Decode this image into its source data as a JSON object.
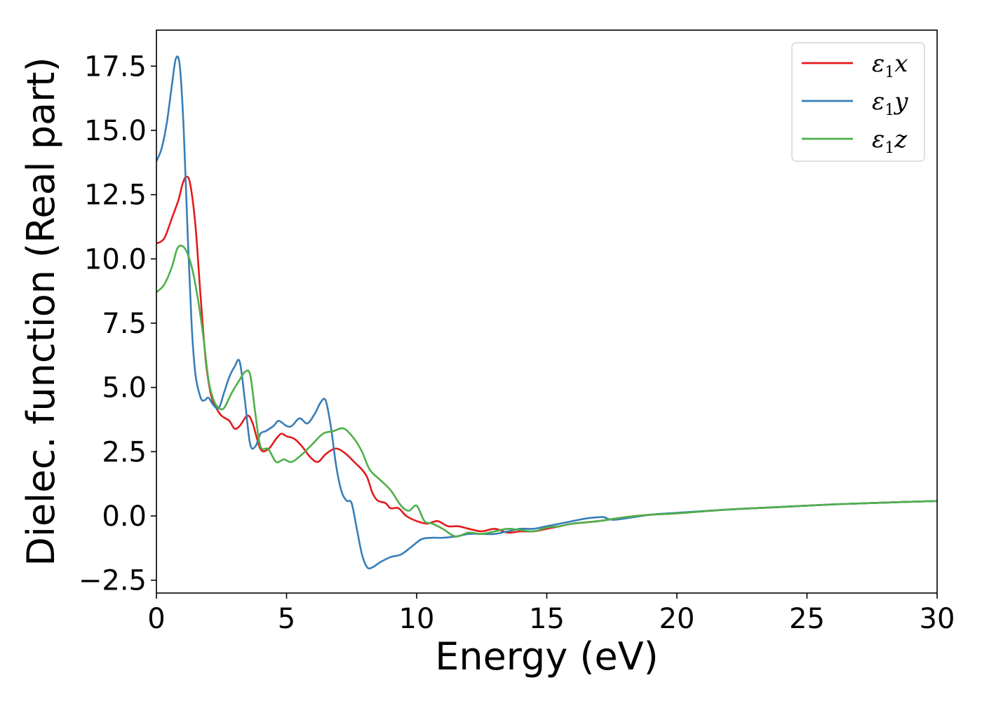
{
  "chart_data": {
    "type": "line",
    "title": "",
    "xlabel": "Energy (eV)",
    "ylabel": "Dielec. function (Real part)",
    "xlim": [
      0,
      30
    ],
    "ylim": [
      -3.0,
      18.9
    ],
    "grid": false,
    "legend_position": "top-right",
    "x_ticks": [
      0,
      5,
      10,
      15,
      20,
      25,
      30
    ],
    "x_tick_labels": [
      "0",
      "5",
      "10",
      "15",
      "20",
      "25",
      "30"
    ],
    "y_ticks": [
      -2.5,
      0.0,
      2.5,
      5.0,
      7.5,
      10.0,
      12.5,
      15.0,
      17.5
    ],
    "y_tick_labels": [
      "−2.5",
      "0.0",
      "2.5",
      "5.0",
      "7.5",
      "10.0",
      "12.5",
      "15.0",
      "17.5"
    ],
    "series": [
      {
        "name": "ε1x",
        "legend_main": "ε",
        "legend_sub": "1",
        "legend_var": "x",
        "color": "#e41a1c",
        "x": [
          0,
          0.3,
          0.6,
          0.85,
          1.0,
          1.15,
          1.3,
          1.5,
          1.7,
          1.9,
          2.1,
          2.3,
          2.5,
          2.8,
          3.0,
          3.2,
          3.5,
          3.7,
          4.0,
          4.3,
          4.6,
          4.8,
          5.0,
          5.3,
          5.6,
          5.9,
          6.2,
          6.5,
          6.8,
          7.0,
          7.3,
          7.6,
          7.9,
          8.1,
          8.3,
          8.5,
          8.8,
          9.0,
          9.3,
          9.6,
          10.0,
          10.4,
          10.8,
          11.2,
          11.6,
          12.0,
          12.5,
          13.0,
          13.5,
          14.0,
          14.5,
          15.0,
          15.5,
          16.0,
          17.0,
          18.0,
          19.0,
          20.0,
          22.0,
          24.0,
          26.0,
          28.0,
          30.0
        ],
        "y": [
          10.6,
          10.8,
          11.6,
          12.3,
          12.9,
          13.2,
          12.9,
          11.3,
          8.5,
          6.0,
          4.7,
          4.2,
          3.9,
          3.7,
          3.4,
          3.5,
          3.9,
          3.6,
          2.6,
          2.6,
          3.0,
          3.2,
          3.1,
          3.0,
          2.7,
          2.3,
          2.1,
          2.4,
          2.6,
          2.6,
          2.4,
          2.1,
          1.8,
          1.5,
          0.9,
          0.6,
          0.5,
          0.3,
          0.3,
          0.0,
          -0.2,
          -0.3,
          -0.2,
          -0.4,
          -0.4,
          -0.5,
          -0.6,
          -0.5,
          -0.65,
          -0.6,
          -0.6,
          -0.5,
          -0.4,
          -0.3,
          -0.2,
          -0.05,
          0.05,
          0.1,
          0.25,
          0.35,
          0.45,
          0.52,
          0.58
        ]
      },
      {
        "name": "ε1y",
        "legend_main": "ε",
        "legend_sub": "1",
        "legend_var": "y",
        "color": "#377eb8",
        "x": [
          0,
          0.2,
          0.4,
          0.6,
          0.75,
          0.9,
          1.05,
          1.2,
          1.35,
          1.5,
          1.7,
          1.85,
          2.0,
          2.2,
          2.4,
          2.6,
          2.8,
          3.0,
          3.2,
          3.4,
          3.6,
          3.8,
          4.0,
          4.2,
          4.5,
          4.7,
          5.0,
          5.2,
          5.5,
          5.8,
          6.1,
          6.3,
          6.5,
          6.7,
          6.9,
          7.1,
          7.3,
          7.5,
          7.7,
          7.9,
          8.1,
          8.3,
          8.6,
          9.0,
          9.4,
          9.8,
          10.2,
          10.6,
          11.0,
          11.5,
          12.0,
          12.5,
          13.0,
          13.5,
          14.0,
          14.5,
          15.0,
          15.5,
          16.0,
          16.5,
          17.0,
          17.2,
          17.5,
          18.0,
          19.0,
          20.0,
          22.0,
          24.0,
          26.0,
          28.0,
          30.0
        ],
        "y": [
          13.8,
          14.3,
          15.3,
          16.8,
          17.8,
          17.5,
          15.0,
          11.0,
          7.5,
          5.5,
          4.6,
          4.5,
          4.6,
          4.3,
          4.2,
          4.8,
          5.4,
          5.8,
          6.0,
          4.5,
          2.8,
          2.7,
          3.2,
          3.3,
          3.5,
          3.7,
          3.5,
          3.5,
          3.8,
          3.6,
          4.0,
          4.4,
          4.5,
          3.5,
          2.0,
          1.0,
          0.6,
          0.5,
          -0.5,
          -1.5,
          -2.0,
          -2.0,
          -1.8,
          -1.6,
          -1.5,
          -1.2,
          -0.9,
          -0.85,
          -0.85,
          -0.8,
          -0.7,
          -0.7,
          -0.7,
          -0.6,
          -0.5,
          -0.5,
          -0.4,
          -0.3,
          -0.2,
          -0.1,
          -0.05,
          -0.05,
          -0.15,
          -0.1,
          0.05,
          0.12,
          0.25,
          0.35,
          0.45,
          0.52,
          0.58
        ]
      },
      {
        "name": "ε1z",
        "legend_main": "ε",
        "legend_sub": "1",
        "legend_var": "z",
        "color": "#4daf4a",
        "x": [
          0,
          0.3,
          0.6,
          0.8,
          1.0,
          1.2,
          1.4,
          1.6,
          1.8,
          2.0,
          2.2,
          2.4,
          2.6,
          2.9,
          3.2,
          3.4,
          3.6,
          3.8,
          4.0,
          4.3,
          4.6,
          4.9,
          5.2,
          5.6,
          6.0,
          6.4,
          6.8,
          7.2,
          7.6,
          7.9,
          8.2,
          8.6,
          9.0,
          9.4,
          9.7,
          10.0,
          10.3,
          10.6,
          11.0,
          11.5,
          12.0,
          12.5,
          13.0,
          13.5,
          14.0,
          14.5,
          15.0,
          15.5,
          16.0,
          17.0,
          18.0,
          19.0,
          20.0,
          22.0,
          24.0,
          26.0,
          28.0,
          30.0
        ],
        "y": [
          8.7,
          9.0,
          9.7,
          10.4,
          10.5,
          10.2,
          9.5,
          8.4,
          7.0,
          5.3,
          4.5,
          4.2,
          4.2,
          4.8,
          5.3,
          5.6,
          5.5,
          4.0,
          2.7,
          2.6,
          2.1,
          2.2,
          2.1,
          2.4,
          2.8,
          3.2,
          3.3,
          3.4,
          3.0,
          2.5,
          1.8,
          1.4,
          1.0,
          0.4,
          0.2,
          0.4,
          -0.2,
          -0.3,
          -0.5,
          -0.8,
          -0.65,
          -0.7,
          -0.6,
          -0.5,
          -0.55,
          -0.6,
          -0.45,
          -0.4,
          -0.3,
          -0.2,
          -0.05,
          0.05,
          0.1,
          0.25,
          0.35,
          0.45,
          0.52,
          0.58
        ]
      }
    ]
  }
}
